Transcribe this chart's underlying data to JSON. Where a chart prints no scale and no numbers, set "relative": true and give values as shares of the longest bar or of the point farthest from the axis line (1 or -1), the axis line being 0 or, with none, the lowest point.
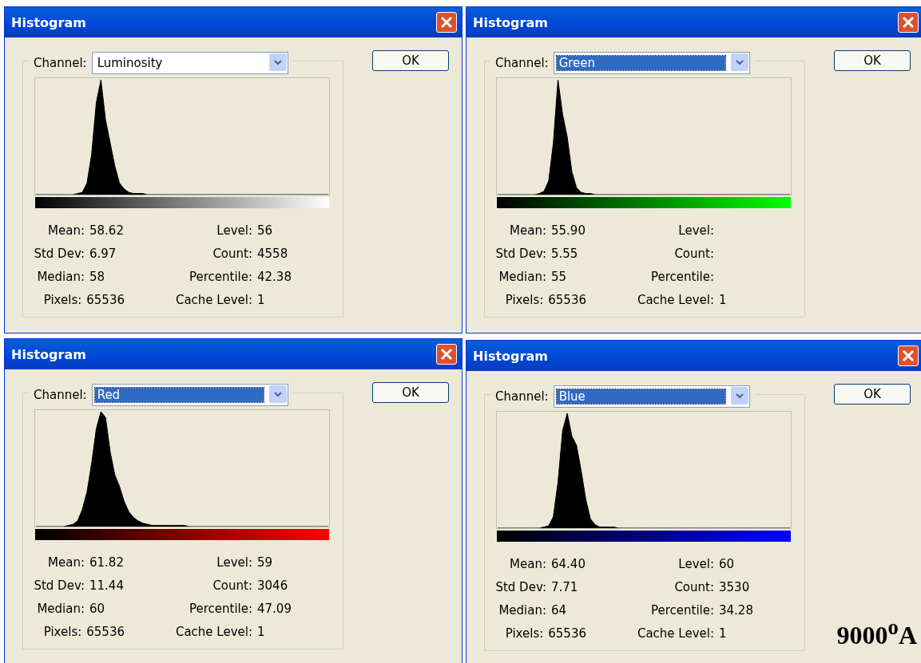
{
  "chart_data": [
    {
      "type": "area",
      "relative": true,
      "title": "Histogram",
      "categories": [
        null,
        null,
        null,
        null,
        null,
        null,
        null,
        null,
        null,
        null,
        null,
        null,
        null,
        null,
        null,
        null,
        null,
        null,
        null,
        null,
        null,
        null,
        null,
        null,
        null,
        null,
        null,
        null,
        null,
        null,
        null,
        null,
        null,
        null,
        null,
        null,
        null,
        null,
        null,
        null,
        null,
        null,
        null,
        null,
        null,
        null,
        null,
        null,
        null,
        null,
        null,
        null,
        null,
        null,
        null,
        null,
        null,
        null,
        null,
        null,
        null,
        null,
        null,
        null
      ],
      "series": [
        {
          "color": "#000000",
          "values": [
            0,
            0,
            0,
            0,
            0,
            0,
            0,
            0,
            0,
            0.01,
            0.02,
            0.1,
            0.35,
            0.8,
            1,
            0.65,
            0.45,
            0.25,
            0.1,
            0.05,
            0.02,
            0.01,
            0.01,
            0.01,
            0,
            0,
            0,
            0,
            0,
            0,
            0,
            0,
            0,
            0,
            0,
            0,
            0,
            0,
            0,
            0,
            0,
            0,
            0,
            0,
            0,
            0,
            0,
            0,
            0,
            0,
            0,
            0,
            0,
            0,
            0,
            0,
            0,
            0,
            0,
            0,
            0,
            0,
            0,
            0
          ]
        }
      ],
      "annotations": [
        "Channel:",
        "Luminosity",
        "OK",
        "Mean: 58.62",
        "Level: 56",
        "Std Dev: 6.97",
        "Count: 4558",
        "Median: 58",
        "Percentile: 42.38",
        "Pixels: 65536",
        "Cache Level: 1"
      ]
    },
    {
      "type": "area",
      "relative": true,
      "title": "Histogram",
      "categories": [
        null,
        null,
        null,
        null,
        null,
        null,
        null,
        null,
        null,
        null,
        null,
        null,
        null,
        null,
        null,
        null,
        null,
        null,
        null,
        null,
        null,
        null,
        null,
        null,
        null,
        null,
        null,
        null,
        null,
        null,
        null,
        null,
        null,
        null,
        null,
        null,
        null,
        null,
        null,
        null,
        null,
        null,
        null,
        null,
        null,
        null,
        null,
        null,
        null,
        null,
        null,
        null,
        null,
        null,
        null,
        null,
        null,
        null,
        null,
        null,
        null,
        null,
        null,
        null
      ],
      "series": [
        {
          "color": "#000000",
          "values": [
            0,
            0,
            0,
            0,
            0,
            0,
            0,
            0,
            0,
            0.01,
            0.03,
            0.12,
            0.45,
            1,
            0.7,
            0.5,
            0.2,
            0.06,
            0.02,
            0.01,
            0.01,
            0,
            0,
            0,
            0,
            0,
            0,
            0,
            0,
            0,
            0,
            0,
            0,
            0,
            0,
            0,
            0,
            0,
            0,
            0,
            0,
            0,
            0,
            0,
            0,
            0,
            0,
            0,
            0,
            0,
            0,
            0,
            0,
            0,
            0,
            0,
            0,
            0,
            0,
            0,
            0,
            0,
            0,
            0
          ]
        }
      ],
      "annotations": [
        "Channel:",
        "Green",
        "OK",
        "Mean: 55.90",
        "Level:",
        "Std Dev: 5.55",
        "Count:",
        "Median: 55",
        "Percentile:",
        "Pixels: 65536",
        "Cache Level: 1"
      ]
    },
    {
      "type": "area",
      "relative": true,
      "title": "Histogram",
      "categories": [
        null,
        null,
        null,
        null,
        null,
        null,
        null,
        null,
        null,
        null,
        null,
        null,
        null,
        null,
        null,
        null,
        null,
        null,
        null,
        null,
        null,
        null,
        null,
        null,
        null,
        null,
        null,
        null,
        null,
        null,
        null,
        null,
        null,
        null,
        null,
        null,
        null,
        null,
        null,
        null,
        null,
        null,
        null,
        null,
        null,
        null,
        null,
        null,
        null,
        null,
        null,
        null,
        null,
        null,
        null,
        null,
        null,
        null,
        null,
        null,
        null,
        null,
        null,
        null
      ],
      "series": [
        {
          "color": "#000000",
          "values": [
            0,
            0,
            0,
            0,
            0,
            0,
            0,
            0.01,
            0.02,
            0.05,
            0.15,
            0.3,
            0.55,
            0.85,
            1,
            0.95,
            0.65,
            0.45,
            0.35,
            0.22,
            0.13,
            0.08,
            0.05,
            0.03,
            0.02,
            0.01,
            0.01,
            0.01,
            0.01,
            0.01,
            0.01,
            0.01,
            0.01,
            0,
            0,
            0,
            0,
            0,
            0,
            0,
            0,
            0,
            0,
            0,
            0,
            0,
            0,
            0,
            0,
            0,
            0,
            0,
            0,
            0,
            0,
            0,
            0,
            0,
            0,
            0,
            0,
            0,
            0,
            0
          ]
        }
      ],
      "annotations": [
        "Channel:",
        "Red",
        "OK",
        "Mean: 61.82",
        "Level: 59",
        "Std Dev: 11.44",
        "Count: 3046",
        "Median: 60",
        "Percentile: 47.09",
        "Pixels: 65536",
        "Cache Level: 1"
      ]
    },
    {
      "type": "area",
      "relative": true,
      "title": "Histogram",
      "categories": [
        null,
        null,
        null,
        null,
        null,
        null,
        null,
        null,
        null,
        null,
        null,
        null,
        null,
        null,
        null,
        null,
        null,
        null,
        null,
        null,
        null,
        null,
        null,
        null,
        null,
        null,
        null,
        null,
        null,
        null,
        null,
        null,
        null,
        null,
        null,
        null,
        null,
        null,
        null,
        null,
        null,
        null,
        null,
        null,
        null,
        null,
        null,
        null,
        null,
        null,
        null,
        null,
        null,
        null,
        null,
        null,
        null,
        null,
        null,
        null,
        null,
        null,
        null,
        null
      ],
      "series": [
        {
          "color": "#000000",
          "values": [
            0,
            0,
            0,
            0,
            0,
            0,
            0,
            0,
            0,
            0,
            0.01,
            0.02,
            0.1,
            0.4,
            0.85,
            1,
            0.8,
            0.72,
            0.5,
            0.25,
            0.08,
            0.03,
            0.01,
            0.01,
            0.01,
            0.01,
            0,
            0,
            0,
            0,
            0,
            0,
            0,
            0,
            0,
            0,
            0,
            0,
            0,
            0,
            0,
            0,
            0,
            0,
            0,
            0,
            0,
            0,
            0,
            0,
            0,
            0,
            0,
            0,
            0,
            0,
            0,
            0,
            0,
            0,
            0,
            0,
            0,
            0
          ]
        }
      ],
      "annotations": [
        "Channel:",
        "Blue",
        "OK",
        "Mean: 64.40",
        "Level: 60",
        "Std Dev: 7.71",
        "Count: 3530",
        "Median: 64",
        "Percentile: 34.28",
        "Pixels: 65536",
        "Cache Level: 1",
        "9000$^{o}$A"
      ]
    }
  ]
}
